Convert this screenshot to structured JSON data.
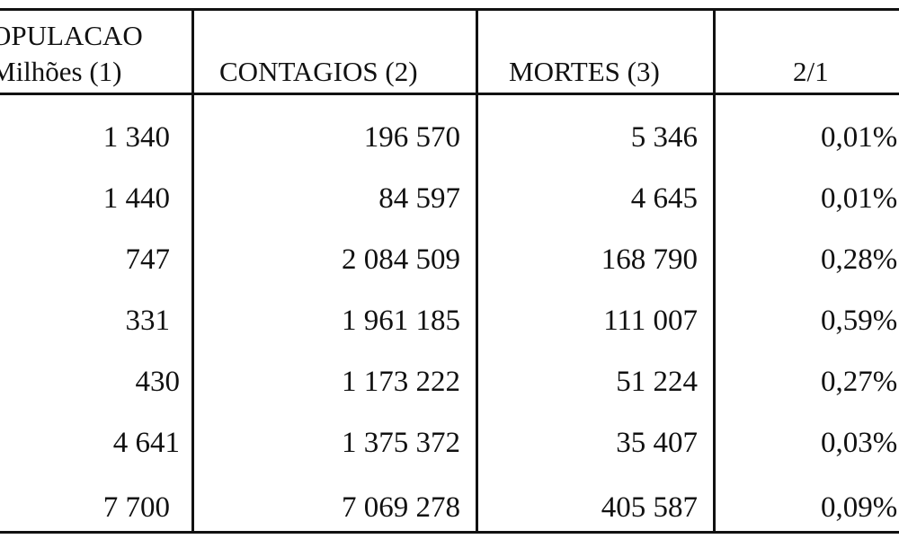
{
  "headers": {
    "populacao_line1": "OPULACAO",
    "populacao_line2": "Milhões (1)",
    "contagios": "CONTAGIOS (2)",
    "mortes": "MORTES (3)",
    "ratio": "2/1"
  },
  "rows": [
    {
      "populacao": "1 340",
      "contagios": "196 570",
      "mortes": "5 346",
      "ratio": "0,01%"
    },
    {
      "populacao": "1 440",
      "contagios": "84 597",
      "mortes": "4 645",
      "ratio": "0,01%"
    },
    {
      "populacao": "747",
      "contagios": "2 084 509",
      "mortes": "168 790",
      "ratio": "0,28%"
    },
    {
      "populacao": "331",
      "contagios": "1 961 185",
      "mortes": "111 007",
      "ratio": "0,59%"
    },
    {
      "populacao": "430",
      "contagios": "1 173 222",
      "mortes": "51 224",
      "ratio": "0,27%"
    },
    {
      "populacao": "4 641",
      "contagios": "1 375 372",
      "mortes": "35 407",
      "ratio": "0,03%"
    },
    {
      "populacao": "7 700",
      "contagios": "7 069 278",
      "mortes": "405 587",
      "ratio": "0,09%"
    }
  ]
}
